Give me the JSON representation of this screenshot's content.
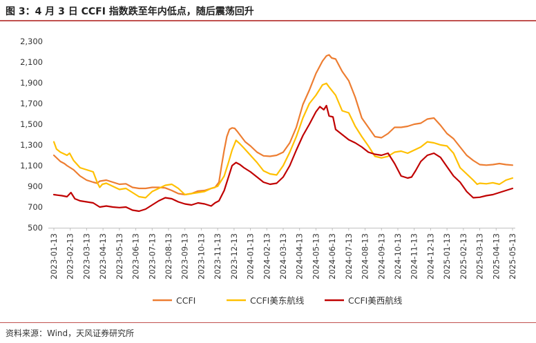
{
  "title": "图 3：4 月 3 日 CCFI 指数跌至年内低点，随后震荡回升",
  "source": "资料来源：Wind，天风证券研究所",
  "chart_data": {
    "type": "line",
    "title": "图 3：4 月 3 日 CCFI 指数跌至年内低点，随后震荡回升",
    "xlabel": "",
    "ylabel": "",
    "ylim": [
      500,
      2300
    ],
    "yticks": [
      500,
      700,
      900,
      1100,
      1300,
      1500,
      1700,
      1900,
      2100,
      2300
    ],
    "ytick_labels": [
      "500",
      "700",
      "900",
      "1,100",
      "1,300",
      "1,500",
      "1,700",
      "1,900",
      "2,100",
      "2,300"
    ],
    "grid": false,
    "legend_position": "bottom",
    "x_tick_labels": [
      "2023-01-13",
      "2023-02-13",
      "2023-03-13",
      "2023-04-13",
      "2023-05-13",
      "2023-06-13",
      "2023-07-13",
      "2023-08-13",
      "2023-09-13",
      "2023-10-13",
      "2023-11-13",
      "2023-12-13",
      "2024-01-13",
      "2024-02-13",
      "2024-03-13",
      "2024-04-13",
      "2024-05-13",
      "2024-06-13",
      "2024-07-13",
      "2024-08-13",
      "2024-09-13",
      "2024-10-13",
      "2024-11-13",
      "2024-12-13",
      "2025-01-13",
      "2025-02-13",
      "2025-03-13",
      "2025-04-13",
      "2025-05-13"
    ],
    "series": [
      {
        "name": "CCFI",
        "color": "#ed7d31",
        "points": [
          [
            0,
            1200
          ],
          [
            0.5,
            1140
          ],
          [
            0.8,
            1120
          ],
          [
            1,
            1100
          ],
          [
            1.5,
            1060
          ],
          [
            2,
            1000
          ],
          [
            2.5,
            960
          ],
          [
            3,
            940
          ],
          [
            3.3,
            930
          ],
          [
            3.5,
            950
          ],
          [
            4,
            960
          ],
          [
            4.5,
            940
          ],
          [
            5,
            920
          ],
          [
            5.5,
            925
          ],
          [
            6,
            890
          ],
          [
            6.5,
            880
          ],
          [
            7,
            880
          ],
          [
            7.5,
            890
          ],
          [
            8,
            890
          ],
          [
            8.5,
            885
          ],
          [
            9,
            860
          ],
          [
            9.5,
            830
          ],
          [
            10,
            820
          ],
          [
            10.5,
            830
          ],
          [
            11,
            855
          ],
          [
            11.5,
            860
          ],
          [
            12,
            880
          ],
          [
            12.3,
            890
          ],
          [
            12.6,
            940
          ],
          [
            12.8,
            1100
          ],
          [
            13,
            1250
          ],
          [
            13.2,
            1380
          ],
          [
            13.4,
            1450
          ],
          [
            13.6,
            1465
          ],
          [
            13.8,
            1460
          ],
          [
            14,
            1430
          ],
          [
            14.3,
            1380
          ],
          [
            14.6,
            1330
          ],
          [
            15,
            1290
          ],
          [
            15.5,
            1230
          ],
          [
            16,
            1195
          ],
          [
            16.5,
            1190
          ],
          [
            17,
            1200
          ],
          [
            17.5,
            1230
          ],
          [
            18,
            1320
          ],
          [
            18.5,
            1470
          ],
          [
            19,
            1690
          ],
          [
            19.5,
            1830
          ],
          [
            20,
            1990
          ],
          [
            20.5,
            2110
          ],
          [
            20.8,
            2160
          ],
          [
            21,
            2170
          ],
          [
            21.2,
            2140
          ],
          [
            21.5,
            2130
          ],
          [
            22,
            2010
          ],
          [
            22.5,
            1920
          ],
          [
            23,
            1760
          ],
          [
            23.5,
            1560
          ],
          [
            24,
            1470
          ],
          [
            24.5,
            1380
          ],
          [
            25,
            1370
          ],
          [
            25.5,
            1410
          ],
          [
            26,
            1470
          ],
          [
            26.5,
            1470
          ],
          [
            27,
            1480
          ],
          [
            27.5,
            1500
          ],
          [
            28,
            1510
          ],
          [
            28.5,
            1550
          ],
          [
            29,
            1560
          ],
          [
            29.5,
            1490
          ],
          [
            30,
            1410
          ],
          [
            30.5,
            1360
          ],
          [
            31,
            1280
          ],
          [
            31.5,
            1200
          ],
          [
            32,
            1150
          ],
          [
            32.5,
            1110
          ],
          [
            33,
            1105
          ],
          [
            33.5,
            1110
          ],
          [
            34,
            1120
          ],
          [
            34.5,
            1110
          ],
          [
            35,
            1105
          ]
        ]
      },
      {
        "name": "CCFI美东航线",
        "color": "#ffc000",
        "points": [
          [
            0,
            1330
          ],
          [
            0.2,
            1260
          ],
          [
            0.5,
            1230
          ],
          [
            1,
            1200
          ],
          [
            1.2,
            1220
          ],
          [
            1.5,
            1150
          ],
          [
            2,
            1080
          ],
          [
            2.5,
            1060
          ],
          [
            3,
            1040
          ],
          [
            3.3,
            940
          ],
          [
            3.5,
            890
          ],
          [
            3.7,
            920
          ],
          [
            4,
            930
          ],
          [
            4.5,
            900
          ],
          [
            5,
            870
          ],
          [
            5.5,
            880
          ],
          [
            6,
            840
          ],
          [
            6.5,
            800
          ],
          [
            7,
            790
          ],
          [
            7.5,
            850
          ],
          [
            8,
            880
          ],
          [
            8.5,
            910
          ],
          [
            9,
            920
          ],
          [
            9.5,
            880
          ],
          [
            10,
            820
          ],
          [
            10.5,
            830
          ],
          [
            11,
            840
          ],
          [
            11.5,
            850
          ],
          [
            12,
            880
          ],
          [
            12.5,
            900
          ],
          [
            13,
            1000
          ],
          [
            13.3,
            1120
          ],
          [
            13.6,
            1250
          ],
          [
            13.9,
            1345
          ],
          [
            14.2,
            1310
          ],
          [
            14.5,
            1270
          ],
          [
            15,
            1200
          ],
          [
            15.5,
            1130
          ],
          [
            16,
            1050
          ],
          [
            16.5,
            1020
          ],
          [
            17,
            1010
          ],
          [
            17.5,
            1100
          ],
          [
            18,
            1230
          ],
          [
            18.5,
            1380
          ],
          [
            19,
            1560
          ],
          [
            19.5,
            1700
          ],
          [
            20,
            1780
          ],
          [
            20.5,
            1880
          ],
          [
            20.8,
            1895
          ],
          [
            21,
            1860
          ],
          [
            21.5,
            1780
          ],
          [
            22,
            1630
          ],
          [
            22.5,
            1610
          ],
          [
            23,
            1480
          ],
          [
            23.5,
            1380
          ],
          [
            24,
            1290
          ],
          [
            24.5,
            1190
          ],
          [
            25,
            1175
          ],
          [
            25.5,
            1190
          ],
          [
            26,
            1230
          ],
          [
            26.5,
            1240
          ],
          [
            27,
            1220
          ],
          [
            27.5,
            1250
          ],
          [
            28,
            1280
          ],
          [
            28.5,
            1330
          ],
          [
            29,
            1320
          ],
          [
            29.5,
            1300
          ],
          [
            30,
            1290
          ],
          [
            30.5,
            1220
          ],
          [
            31,
            1080
          ],
          [
            31.5,
            1020
          ],
          [
            32,
            960
          ],
          [
            32.3,
            920
          ],
          [
            32.5,
            930
          ],
          [
            33,
            925
          ],
          [
            33.5,
            935
          ],
          [
            34,
            920
          ],
          [
            34.5,
            960
          ],
          [
            35,
            980
          ]
        ]
      },
      {
        "name": "CCFI美西航线",
        "color": "#c00000",
        "points": [
          [
            0,
            820
          ],
          [
            0.3,
            815
          ],
          [
            0.6,
            810
          ],
          [
            1,
            800
          ],
          [
            1.3,
            840
          ],
          [
            1.6,
            780
          ],
          [
            2,
            760
          ],
          [
            2.5,
            750
          ],
          [
            3,
            740
          ],
          [
            3.5,
            700
          ],
          [
            4,
            710
          ],
          [
            4.5,
            700
          ],
          [
            5,
            695
          ],
          [
            5.5,
            700
          ],
          [
            6,
            670
          ],
          [
            6.5,
            660
          ],
          [
            7,
            680
          ],
          [
            7.5,
            720
          ],
          [
            8,
            760
          ],
          [
            8.5,
            790
          ],
          [
            9,
            780
          ],
          [
            9.5,
            750
          ],
          [
            10,
            730
          ],
          [
            10.5,
            720
          ],
          [
            11,
            740
          ],
          [
            11.5,
            730
          ],
          [
            12,
            710
          ],
          [
            12.3,
            740
          ],
          [
            12.6,
            760
          ],
          [
            13,
            860
          ],
          [
            13.3,
            980
          ],
          [
            13.6,
            1100
          ],
          [
            13.9,
            1130
          ],
          [
            14.2,
            1110
          ],
          [
            14.5,
            1080
          ],
          [
            15,
            1040
          ],
          [
            15.5,
            990
          ],
          [
            16,
            940
          ],
          [
            16.5,
            920
          ],
          [
            17,
            930
          ],
          [
            17.5,
            990
          ],
          [
            18,
            1100
          ],
          [
            18.5,
            1250
          ],
          [
            19,
            1390
          ],
          [
            19.5,
            1500
          ],
          [
            20,
            1620
          ],
          [
            20.3,
            1670
          ],
          [
            20.6,
            1640
          ],
          [
            20.8,
            1680
          ],
          [
            21,
            1580
          ],
          [
            21.3,
            1570
          ],
          [
            21.5,
            1450
          ],
          [
            22,
            1400
          ],
          [
            22.5,
            1350
          ],
          [
            23,
            1320
          ],
          [
            23.5,
            1280
          ],
          [
            24,
            1230
          ],
          [
            24.5,
            1210
          ],
          [
            25,
            1200
          ],
          [
            25.5,
            1220
          ],
          [
            26,
            1120
          ],
          [
            26.5,
            1000
          ],
          [
            27,
            980
          ],
          [
            27.3,
            990
          ],
          [
            27.6,
            1050
          ],
          [
            28,
            1140
          ],
          [
            28.5,
            1200
          ],
          [
            29,
            1220
          ],
          [
            29.5,
            1180
          ],
          [
            30,
            1090
          ],
          [
            30.5,
            1000
          ],
          [
            31,
            940
          ],
          [
            31.5,
            850
          ],
          [
            32,
            790
          ],
          [
            32.5,
            795
          ],
          [
            33,
            810
          ],
          [
            33.5,
            820
          ],
          [
            34,
            840
          ],
          [
            34.5,
            860
          ],
          [
            35,
            880
          ]
        ]
      }
    ]
  }
}
